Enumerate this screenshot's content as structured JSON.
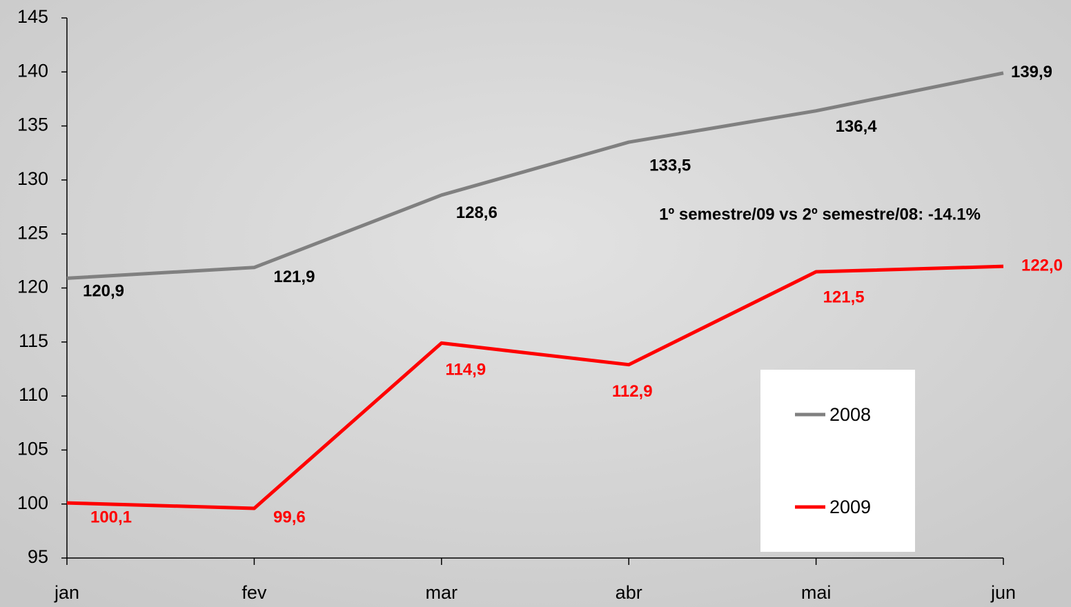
{
  "chart_data": {
    "type": "line",
    "categories": [
      "jan",
      "fev",
      "mar",
      "abr",
      "mai",
      "jun"
    ],
    "series": [
      {
        "name": "2008",
        "color": "#808080",
        "values": [
          120.9,
          121.9,
          128.6,
          133.5,
          136.4,
          139.9
        ],
        "value_labels": [
          "120,9",
          "121,9",
          "128,6",
          "133,5",
          "136,4",
          "139,9"
        ],
        "label_color": "#000000"
      },
      {
        "name": "2009",
        "color": "#ff0000",
        "values": [
          100.1,
          99.6,
          114.9,
          112.9,
          121.5,
          122.0
        ],
        "value_labels": [
          "100,1",
          "99,6",
          "114,9",
          "112,9",
          "121,5",
          "122,0"
        ],
        "label_color": "#ff0000"
      }
    ],
    "ylim": [
      95,
      145
    ],
    "yticks": [
      95,
      100,
      105,
      110,
      115,
      120,
      125,
      130,
      135,
      140,
      145
    ],
    "annotation": "1º semestre/09 vs 2º semestre/08: -14.1%"
  }
}
